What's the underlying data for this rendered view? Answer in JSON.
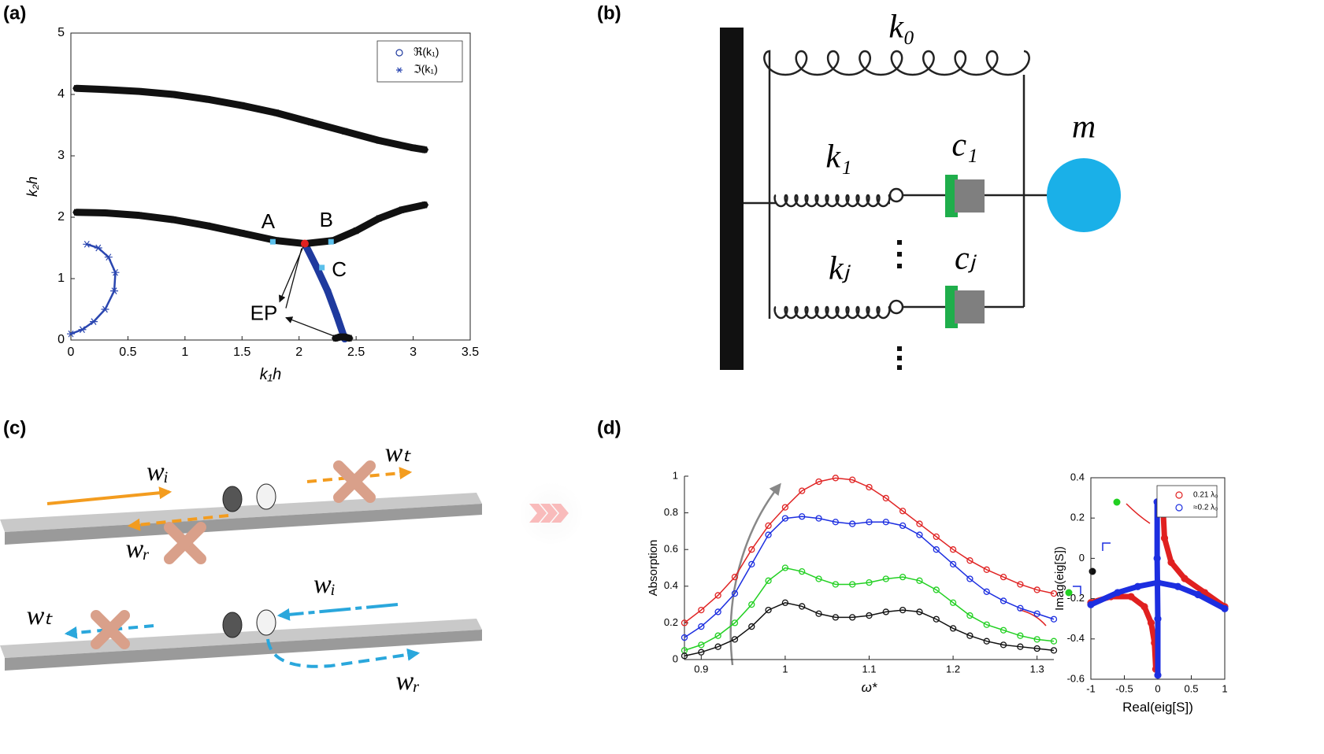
{
  "panel_labels": [
    "(a)",
    "(b)",
    "(c)",
    "(d)"
  ],
  "chart_data": [
    {
      "type": "scatter",
      "xlabel": "k₁h",
      "ylabel": "k₂h",
      "xlim": [
        0,
        3.5
      ],
      "xticks": [
        0,
        0.5,
        1,
        1.5,
        2,
        2.5,
        3,
        3.5
      ],
      "ylim": [
        0,
        5
      ],
      "yticks": [
        0,
        1,
        2,
        3,
        4,
        5
      ],
      "box": true,
      "legend": "upper right",
      "series": [
        {
          "name": "ℜ(k₁)",
          "marker": "circle",
          "color": "#1f3a9e",
          "x": [
            2.05,
            2.15,
            2.25,
            2.33,
            2.4
          ],
          "y": [
            1.57,
            1.2,
            0.8,
            0.4,
            0.02
          ]
        },
        {
          "name": "ℑ(k₁)",
          "marker": "asterisk",
          "color": "#2a46b0",
          "x": [
            0.0,
            0.1,
            0.2,
            0.3,
            0.38,
            0.39,
            0.33,
            0.24,
            0.14
          ],
          "y": [
            0.1,
            0.17,
            0.3,
            0.5,
            0.8,
            1.1,
            1.35,
            1.5,
            1.56
          ]
        },
        {
          "marker": "asterisk",
          "color": "#111111",
          "x": [
            0.05,
            0.3,
            0.6,
            0.9,
            1.2,
            1.5,
            1.8,
            2.1,
            2.4,
            2.7,
            3.0,
            3.1
          ],
          "y": [
            4.1,
            4.08,
            4.05,
            4.0,
            3.92,
            3.82,
            3.7,
            3.55,
            3.4,
            3.25,
            3.13,
            3.1
          ]
        },
        {
          "marker": "asterisk",
          "color": "#111111",
          "x": [
            0.05,
            0.3,
            0.6,
            0.9,
            1.2,
            1.5,
            1.8,
            2.05,
            2.3,
            2.5,
            2.7,
            2.9,
            3.1
          ],
          "y": [
            2.08,
            2.07,
            2.03,
            1.96,
            1.86,
            1.74,
            1.62,
            1.57,
            1.62,
            1.78,
            1.98,
            2.12,
            2.2
          ]
        },
        {
          "marker": "asterisk",
          "color": "#111111",
          "x": [
            2.32,
            2.36,
            2.4,
            2.44
          ],
          "y": [
            0.03,
            0.05,
            0.05,
            0.03
          ]
        }
      ],
      "points": [
        {
          "label": "A",
          "x": 1.77,
          "y": 1.6,
          "color": "#5bc0eb"
        },
        {
          "label": "B",
          "x": 2.28,
          "y": 1.6,
          "color": "#5bc0eb"
        },
        {
          "label": "C",
          "x": 2.2,
          "y": 1.18,
          "color": "#5bc0eb"
        },
        {
          "label": "EP",
          "x": 2.05,
          "y": 1.57,
          "color": "#e02020"
        }
      ]
    },
    {
      "type": "line",
      "xlabel": "ω*",
      "ylabel": "Absorption",
      "xlim": [
        0.88,
        1.32
      ],
      "xticks": [
        0.9,
        1,
        1.1,
        1.2,
        1.3
      ],
      "ylim": [
        0,
        1
      ],
      "yticks": [
        0,
        0.2,
        0.4,
        0.6,
        0.8,
        1
      ],
      "box": false,
      "x": [
        0.88,
        0.9,
        0.92,
        0.94,
        0.96,
        0.98,
        1.0,
        1.02,
        1.04,
        1.06,
        1.08,
        1.1,
        1.12,
        1.14,
        1.16,
        1.18,
        1.2,
        1.22,
        1.24,
        1.26,
        1.28,
        1.3,
        1.32
      ],
      "series": [
        {
          "color": "#e02424",
          "values": [
            0.2,
            0.27,
            0.35,
            0.45,
            0.6,
            0.73,
            0.83,
            0.92,
            0.97,
            0.99,
            0.98,
            0.94,
            0.88,
            0.81,
            0.74,
            0.67,
            0.6,
            0.54,
            0.49,
            0.45,
            0.41,
            0.38,
            0.36
          ]
        },
        {
          "color": "#1c2ee0",
          "values": [
            0.12,
            0.18,
            0.26,
            0.36,
            0.52,
            0.68,
            0.77,
            0.78,
            0.77,
            0.75,
            0.74,
            0.75,
            0.75,
            0.73,
            0.68,
            0.6,
            0.52,
            0.44,
            0.37,
            0.32,
            0.28,
            0.25,
            0.22
          ]
        },
        {
          "color": "#22d022",
          "values": [
            0.05,
            0.08,
            0.13,
            0.2,
            0.3,
            0.43,
            0.5,
            0.48,
            0.44,
            0.41,
            0.41,
            0.42,
            0.44,
            0.45,
            0.43,
            0.38,
            0.31,
            0.24,
            0.19,
            0.16,
            0.13,
            0.11,
            0.1
          ]
        },
        {
          "color": "#111111",
          "values": [
            0.02,
            0.04,
            0.07,
            0.11,
            0.18,
            0.27,
            0.31,
            0.29,
            0.25,
            0.23,
            0.23,
            0.24,
            0.26,
            0.27,
            0.26,
            0.22,
            0.17,
            0.13,
            0.1,
            0.08,
            0.07,
            0.06,
            0.05
          ]
        }
      ]
    },
    {
      "type": "scatter",
      "xlabel": "Real(eig[S])",
      "ylabel": "Imag(eig[S])",
      "xlim": [
        -1,
        1
      ],
      "xticks": [
        -1,
        -0.5,
        0,
        0.5,
        1
      ],
      "ylim": [
        -0.6,
        0.4
      ],
      "yticks": [
        -0.6,
        -0.4,
        -0.2,
        0,
        0.2,
        0.4
      ],
      "box": true,
      "legend": "upper right",
      "series": [
        {
          "name": "0.21 λ₀",
          "marker": "circle",
          "color": "#e02020",
          "x": [
            -1,
            -0.7,
            -0.4,
            -0.2,
            -0.1,
            -0.05,
            -0.03,
            null,
            0.07,
            0.1,
            0.2,
            0.4,
            0.7,
            1.0
          ],
          "y": [
            -0.22,
            -0.19,
            -0.19,
            -0.24,
            -0.32,
            -0.42,
            -0.55,
            null,
            0.3,
            0.1,
            -0.02,
            -0.1,
            -0.17,
            -0.24
          ]
        },
        {
          "name": "≈0.2 λ₀",
          "marker": "circle",
          "color": "#1c2ee0",
          "x": [
            -1,
            -0.6,
            -0.3,
            0,
            0.3,
            0.6,
            1,
            null,
            -0.01,
            -0.01,
            0,
            0
          ],
          "y": [
            -0.23,
            -0.17,
            -0.14,
            -0.12,
            -0.14,
            -0.18,
            -0.25,
            null,
            0.28,
            0,
            -0.3,
            -0.58
          ]
        }
      ]
    }
  ],
  "diagram_b": {
    "labels": [
      "k₀",
      "m",
      "k₁",
      "c₁",
      "kⱼ",
      "cⱼ"
    ]
  },
  "diagram_c": {
    "labels": [
      "wᵢ",
      "wₜ",
      "wᵣ",
      "wᵢ",
      "wₜ",
      "wᵣ"
    ]
  }
}
